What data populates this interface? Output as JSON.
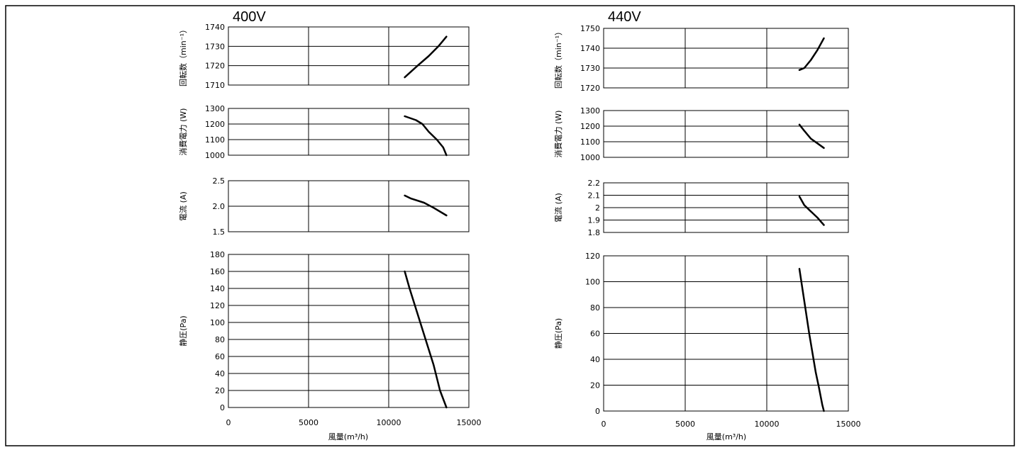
{
  "chart_data": [
    {
      "title": "400V",
      "xlabel": "風量(m³/h)",
      "xlim": [
        0,
        15000
      ],
      "xticks": [
        "0",
        "5000",
        "10000",
        "15000"
      ],
      "panels": [
        {
          "type": "line",
          "ylabel": "回転数（min⁻¹）",
          "ylim": [
            1710,
            1740
          ],
          "yticks": [
            "1710",
            "1720",
            "1730",
            "1740"
          ],
          "series": [
            {
              "x": [
                11000,
                11800,
                12500,
                13100,
                13600
              ],
              "y": [
                1714,
                1720,
                1725,
                1730,
                1735
              ]
            }
          ]
        },
        {
          "type": "line",
          "ylabel": "消費電力 (W)",
          "ylim": [
            1000,
            1300
          ],
          "yticks": [
            "1000",
            "1100",
            "1200",
            "1300"
          ],
          "series": [
            {
              "x": [
                11000,
                11700,
                12100,
                12500,
                13000,
                13400,
                13600
              ],
              "y": [
                1250,
                1225,
                1200,
                1150,
                1100,
                1050,
                1000
              ]
            }
          ]
        },
        {
          "type": "line",
          "ylabel": "電流 (A)",
          "ylim": [
            1.5,
            2.5
          ],
          "yticks": [
            "1.5",
            "2.0",
            "2.5"
          ],
          "series": [
            {
              "x": [
                11000,
                11400,
                12200,
                12800,
                13600
              ],
              "y": [
                2.21,
                2.15,
                2.07,
                1.97,
                1.82
              ]
            }
          ]
        },
        {
          "type": "line",
          "ylabel": "静圧(Pa)",
          "ylim": [
            0,
            180
          ],
          "yticks": [
            "0",
            "20",
            "40",
            "60",
            "80",
            "100",
            "120",
            "140",
            "160",
            "180"
          ],
          "series": [
            {
              "x": [
                11000,
                11300,
                11800,
                12300,
                12800,
                13200,
                13600
              ],
              "y": [
                160,
                140,
                110,
                80,
                50,
                20,
                0
              ]
            }
          ]
        }
      ]
    },
    {
      "title": "440V",
      "xlabel": "風量(m³/h)",
      "xlim": [
        0,
        15000
      ],
      "xticks": [
        "0",
        "5000",
        "10000",
        "15000"
      ],
      "panels": [
        {
          "type": "line",
          "ylabel": "回転数（min⁻¹）",
          "ylim": [
            1720,
            1750
          ],
          "yticks": [
            "1720",
            "1730",
            "1740",
            "1750"
          ],
          "series": [
            {
              "x": [
                12000,
                12300,
                12700,
                13100,
                13500
              ],
              "y": [
                1729,
                1730,
                1734,
                1739,
                1745
              ]
            }
          ]
        },
        {
          "type": "line",
          "ylabel": "消費電力 (W)",
          "ylim": [
            1000,
            1300
          ],
          "yticks": [
            "1000",
            "1100",
            "1200",
            "1300"
          ],
          "series": [
            {
              "x": [
                12000,
                12300,
                12700,
                13100,
                13500
              ],
              "y": [
                1210,
                1170,
                1120,
                1090,
                1060
              ]
            }
          ]
        },
        {
          "type": "line",
          "ylabel": "電流 (A)",
          "ylim": [
            1.8,
            2.2
          ],
          "yticks": [
            "1.8",
            "1.9",
            "2",
            "2.1",
            "2.2"
          ],
          "series": [
            {
              "x": [
                12000,
                12300,
                12700,
                13100,
                13500
              ],
              "y": [
                2.09,
                2.02,
                1.97,
                1.92,
                1.86
              ]
            }
          ]
        },
        {
          "type": "line",
          "ylabel": "静圧(Pa)",
          "ylim": [
            0,
            120
          ],
          "yticks": [
            "0",
            "20",
            "40",
            "60",
            "80",
            "100",
            "120"
          ],
          "series": [
            {
              "x": [
                12000,
                12300,
                12600,
                12800,
                13000,
                13200,
                13400,
                13500
              ],
              "y": [
                110,
                85,
                60,
                45,
                30,
                18,
                5,
                0
              ]
            }
          ]
        }
      ]
    }
  ]
}
